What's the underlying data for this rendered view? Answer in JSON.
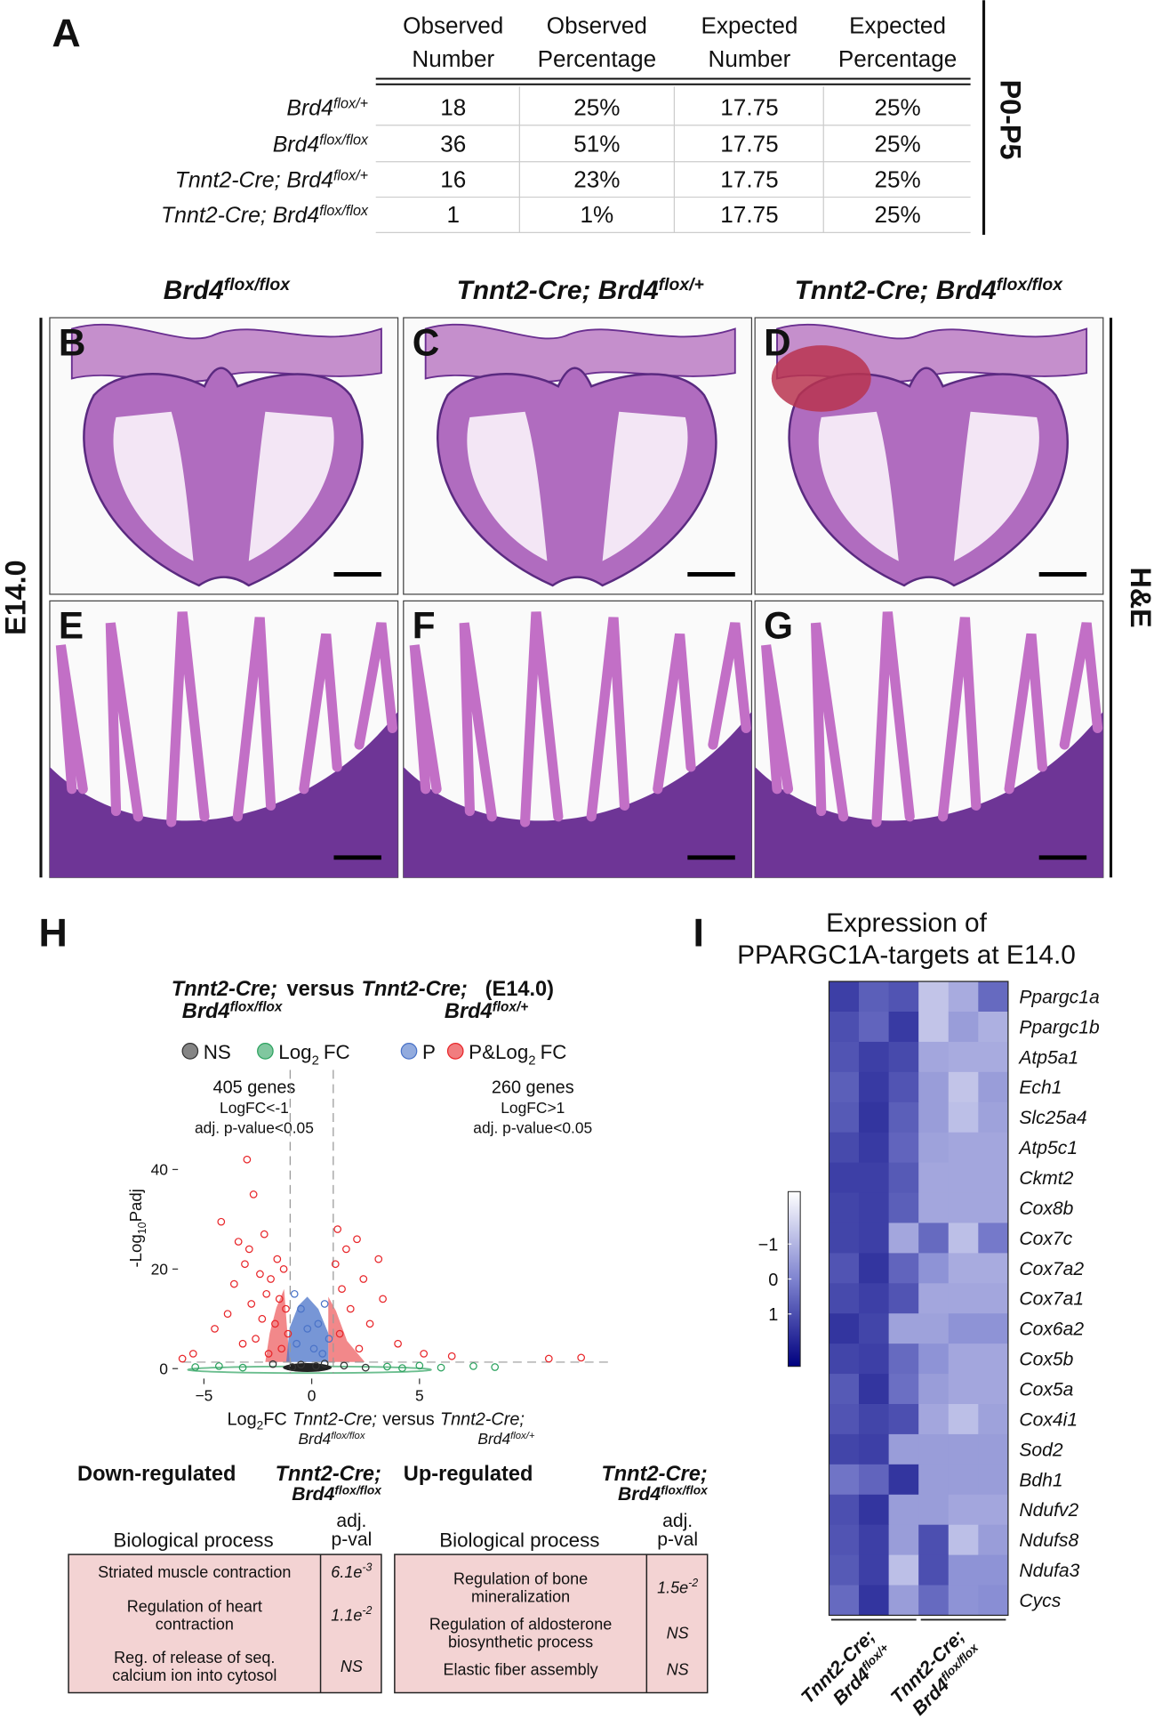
{
  "panel_a": {
    "label": "A",
    "stage": "P0-P5",
    "headers": [
      [
        "Observed",
        "Number"
      ],
      [
        "Observed",
        "Percentage"
      ],
      [
        "Expected",
        "Number"
      ],
      [
        "Expected",
        "Percentage"
      ]
    ],
    "rows": [
      {
        "genotype": "Brd4",
        "superscript": "flox/+",
        "cells": [
          "18",
          "25%",
          "17.75",
          "25%"
        ]
      },
      {
        "genotype": "Brd4",
        "superscript": "flox/flox",
        "cells": [
          "36",
          "51%",
          "17.75",
          "25%"
        ]
      },
      {
        "genotype": "Tnnt2-Cre; Brd4",
        "superscript": "flox/+",
        "cells": [
          "16",
          "23%",
          "17.75",
          "25%"
        ]
      },
      {
        "genotype": "Tnnt2-Cre; Brd4",
        "superscript": "flox/flox",
        "cells": [
          "1",
          "1%",
          "17.75",
          "25%"
        ]
      }
    ]
  },
  "histology": {
    "columns": [
      {
        "genotype": "Brd4",
        "superscript": "flox/flox"
      },
      {
        "genotype": "Tnnt2-Cre; Brd4",
        "superscript": "flox/+"
      },
      {
        "genotype": "Tnnt2-Cre; Brd4",
        "superscript": "flox/flox"
      }
    ],
    "panels": [
      "B",
      "C",
      "D",
      "E",
      "F",
      "G"
    ],
    "stage": "E14.0",
    "stain": "H&E"
  },
  "panel_h": {
    "label": "H",
    "type": "scatter",
    "title": {
      "line1": [
        "Tnnt2-Cre;",
        "versus",
        "Tnnt2-Cre;",
        "(E14.0)"
      ],
      "line2": [
        {
          "genotype": "Brd4",
          "superscript": "flox/flox"
        },
        {
          "genotype": "Brd4",
          "superscript": "flox/+"
        }
      ]
    },
    "series": [
      {
        "name": "NS",
        "color": "#333333",
        "x": [
          -0.5,
          0.2,
          0.6,
          -0.9,
          1.5,
          -1.8,
          2.5
        ],
        "y": [
          0.8,
          0.5,
          1,
          0.3,
          0.6,
          0.9,
          0.2
        ]
      },
      {
        "name": "Log",
        "sub": "2",
        "suffix": "FC",
        "color": "#2ca25f",
        "x": [
          -5.4,
          -4.3,
          -3.2,
          3.5,
          5,
          6,
          7.5,
          4.2,
          8.5
        ],
        "y": [
          0.3,
          0.5,
          0.2,
          0.4,
          0.6,
          0.2,
          0.5,
          0.1,
          0.3
        ]
      },
      {
        "name": "P",
        "color": "#4a73c8",
        "x": [
          -0.8,
          -0.5,
          0.6,
          0.3,
          -0.2,
          0.8,
          -0.7,
          0.1,
          0.5
        ],
        "y": [
          15,
          12,
          13,
          9,
          8,
          6,
          5,
          4,
          3
        ]
      },
      {
        "name": "P&Log",
        "sub": "2",
        "suffix": "FC",
        "color": "#e8262a",
        "x": [
          -3,
          -2.7,
          -4.2,
          -2.2,
          -3.4,
          -2.9,
          -1.6,
          -3.1,
          -1.3,
          -2.4,
          -1.9,
          -3.6,
          -2.1,
          -1.5,
          -2.8,
          -1.2,
          -3.9,
          -2.3,
          -1.7,
          -4.5,
          -1.1,
          -2.6,
          -3.2,
          -1.4,
          -5.5,
          -6,
          -2,
          1.2,
          2.1,
          1.6,
          3.1,
          1.1,
          2.4,
          1.4,
          3.3,
          1.8,
          2.7,
          1.3,
          4,
          2.2,
          5.2,
          6.5,
          11,
          12.5
        ],
        "y": [
          42,
          35,
          29.5,
          27,
          25.5,
          24,
          22,
          21,
          20,
          19,
          18,
          17,
          15,
          14,
          13,
          12,
          11,
          10,
          9,
          8,
          7,
          6,
          5,
          4,
          3,
          2,
          3,
          28,
          26,
          24,
          22,
          21,
          18,
          16,
          14,
          12,
          9,
          7,
          5,
          4,
          3,
          2.5,
          2,
          2.2
        ]
      }
    ],
    "annotations": {
      "left": [
        "405 genes",
        "LogFC<-1",
        "adj. p-value<0.05"
      ],
      "right": [
        "260 genes",
        "LogFC>1",
        "adj. p-value<0.05"
      ]
    },
    "xlim": [
      -6,
      14
    ],
    "ylim": [
      -1,
      60
    ],
    "xticks": [
      {
        "value": -5,
        "label": "−5"
      },
      0,
      5
    ],
    "yticks": [
      0,
      20,
      40
    ],
    "x_thresholds": [
      -1,
      1
    ],
    "y_threshold": 1.3,
    "ylabel": {
      "prefix": "-Log",
      "sub": "10",
      "suffix": "Padj"
    },
    "xlabel": {
      "prefix": "Log",
      "sub": "2",
      "mid": "FC",
      "g1": "Tnnt2-Cre;",
      "versus": "versus",
      "g2": "Tnnt2-Cre;",
      "g1_line2": {
        "genotype": "Brd4",
        "superscript": "flox/flox"
      },
      "g2_line2": {
        "genotype": "Brd4",
        "superscript": "flox/+"
      }
    }
  },
  "go_tables": [
    {
      "direction": "Down-regulated",
      "genotype_line1": "Tnnt2-Cre;",
      "genotype_line2": {
        "genotype": "Brd4",
        "superscript": "flox/flox"
      },
      "col_process": "Biological process",
      "col_pval": [
        "adj.",
        "p-val"
      ],
      "rows": [
        {
          "process": [
            "Striated muscle contraction"
          ],
          "pval": "6.1e",
          "pval_exp": "-3"
        },
        {
          "process": [
            "Regulation of heart",
            "contraction"
          ],
          "pval": "1.1e",
          "pval_exp": "-2"
        },
        {
          "process": [
            "Reg. of release of seq.",
            "calcium ion into cytosol"
          ],
          "pval": "NS"
        }
      ]
    },
    {
      "direction": "Up-regulated",
      "genotype_line1": "Tnnt2-Cre;",
      "genotype_line2": {
        "genotype": "Brd4",
        "superscript": "flox/flox"
      },
      "col_process": "Biological process",
      "col_pval": [
        "adj.",
        "p-val"
      ],
      "rows": [
        {
          "process": [
            "Regulation of bone",
            "mineralization"
          ],
          "pval": "1.5e",
          "pval_exp": "-2"
        },
        {
          "process": [
            "Regulation of aldosterone",
            "biosynthetic process"
          ],
          "pval": "NS"
        },
        {
          "process": [
            "Elastic fiber assembly"
          ],
          "pval": "NS"
        }
      ]
    }
  ],
  "panel_i": {
    "label": "I",
    "type": "heatmap",
    "title": [
      "Expression of",
      "PPARGC1A-targets at E14.0"
    ],
    "genes": [
      "Ppargc1a",
      "Ppargc1b",
      "Atp5a1",
      "Ech1",
      "Slc25a4",
      "Atp5c1",
      "Ckmt2",
      "Cox8b",
      "Cox7c",
      "Cox7a2",
      "Cox7a1",
      "Cox6a2",
      "Cox5b",
      "Cox5a",
      "Cox4i1",
      "Sod2",
      "Bdh1",
      "Ndufv2",
      "Ndufs8",
      "Ndufa3",
      "Cycs"
    ],
    "values": [
      [
        1.3,
        0.7,
        0.9,
        -1.3,
        -0.8,
        0.5
      ],
      [
        1.0,
        0.6,
        1.4,
        -1.3,
        -0.5,
        -0.9
      ],
      [
        0.9,
        1.3,
        1.1,
        -0.7,
        -0.8,
        -0.8
      ],
      [
        0.7,
        1.4,
        0.9,
        -0.5,
        -1.3,
        -0.5
      ],
      [
        0.8,
        1.5,
        0.7,
        -0.5,
        -1.2,
        -0.6
      ],
      [
        1.1,
        1.4,
        0.6,
        -0.6,
        -0.7,
        -0.7
      ],
      [
        1.3,
        1.3,
        0.8,
        -0.7,
        -0.7,
        -0.7
      ],
      [
        1.2,
        1.3,
        0.7,
        -0.7,
        -0.7,
        -0.7
      ],
      [
        1.2,
        1.3,
        -0.7,
        0.5,
        -1.2,
        0.2
      ],
      [
        0.9,
        1.5,
        0.6,
        -0.3,
        -0.8,
        -0.8
      ],
      [
        1.1,
        1.3,
        0.9,
        -0.7,
        -0.7,
        -0.7
      ],
      [
        1.5,
        1.2,
        -0.6,
        -0.6,
        -0.3,
        -0.3
      ],
      [
        1.2,
        1.3,
        0.5,
        -0.3,
        -0.7,
        -0.7
      ],
      [
        0.8,
        1.5,
        0.4,
        -0.5,
        -0.7,
        -0.7
      ],
      [
        0.9,
        1.2,
        1.0,
        -0.7,
        -1.2,
        -0.6
      ],
      [
        1.2,
        1.3,
        -0.5,
        -0.5,
        -0.5,
        -0.5
      ],
      [
        0.3,
        0.6,
        1.5,
        -0.5,
        -0.5,
        -0.5
      ],
      [
        1.0,
        1.5,
        -0.5,
        -0.5,
        -0.7,
        -0.7
      ],
      [
        0.9,
        1.3,
        -0.5,
        1.0,
        -1.2,
        -0.5
      ],
      [
        0.8,
        1.3,
        -1.2,
        1.0,
        -0.3,
        -0.3
      ],
      [
        0.5,
        1.5,
        -0.5,
        0.5,
        -0.3,
        -0.2
      ]
    ],
    "groups": [
      {
        "line1": "Tnnt2-Cre;",
        "genotype": "Brd4",
        "superscript": "flox/+",
        "color": "#000000"
      },
      {
        "line1": "Tnnt2-Cre;",
        "genotype": "Brd4",
        "superscript": "flox/flox",
        "color": "#b0102a"
      }
    ],
    "colorscale": [
      "#ffffff",
      "#7f84d0",
      "#00007f"
    ],
    "clim": [
      -2.5,
      2.5
    ],
    "colorbar_ticks": [
      {
        "value": -1,
        "label": "−1"
      },
      0,
      1
    ]
  }
}
